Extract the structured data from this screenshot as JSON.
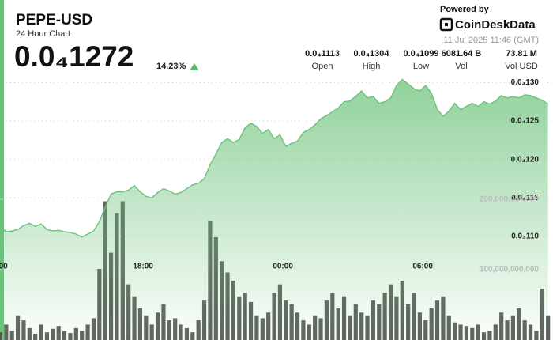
{
  "header": {
    "title": "PEPE-USD",
    "subtitle": "24 Hour Chart",
    "price": "0.0₄1272",
    "change": "14.23%",
    "powered_by": "Powered by",
    "brand": "CoinDeskData",
    "timestamp": "11 Jul 2025 11:46 (GMT)",
    "stats": [
      {
        "value": "0.0₄1113",
        "label": "Open"
      },
      {
        "value": "0.0₄1304",
        "label": "High"
      },
      {
        "value": "0.0₄1099",
        "label": "Low"
      },
      {
        "value": "6081.64 B",
        "label": "Vol"
      },
      {
        "value": "73.81 M",
        "label": "Vol USD"
      }
    ]
  },
  "chart_data": {
    "type": "line",
    "grid": true,
    "x": [
      11.875,
      12.125,
      12.375,
      12.625,
      12.875,
      13.125,
      13.375,
      13.625,
      13.875,
      14.125,
      14.375,
      14.625,
      14.875,
      15.125,
      15.375,
      15.625,
      15.875,
      16.125,
      16.375,
      16.625,
      16.875,
      17.125,
      17.375,
      17.625,
      17.875,
      18.125,
      18.375,
      18.625,
      18.875,
      19.125,
      19.375,
      19.625,
      19.875,
      20.125,
      20.375,
      20.625,
      20.875,
      21.125,
      21.375,
      21.625,
      21.875,
      22.125,
      22.375,
      22.625,
      22.875,
      23.125,
      23.375,
      23.625,
      23.875,
      24.125,
      24.375,
      24.625,
      24.875,
      25.125,
      25.375,
      25.625,
      25.875,
      26.125,
      26.375,
      26.625,
      26.875,
      27.125,
      27.375,
      27.625,
      27.875,
      28.125,
      28.375,
      28.625,
      28.875,
      29.125,
      29.375,
      29.625,
      29.875,
      30.125,
      30.375,
      30.625,
      30.875,
      31.125,
      31.375,
      31.625,
      31.875,
      32.125,
      32.375,
      32.625,
      32.875,
      33.125,
      33.375,
      33.625,
      33.875,
      34.125,
      34.375,
      34.625,
      34.875,
      35.125,
      35.375
    ],
    "xlim": [
      11.86,
      35.59
    ],
    "xticks": [
      {
        "value": 12,
        "label": "00"
      },
      {
        "value": 18,
        "label": "18:00"
      },
      {
        "value": 24,
        "label": "00:00"
      },
      {
        "value": 30,
        "label": "06:00"
      }
    ],
    "ylim": [
      9.653e-06,
      1.325e-05
    ],
    "yticks": [
      {
        "value": 1.1e-05,
        "label": "0.0₄110"
      },
      {
        "value": 1.15e-05,
        "label": "0.0₄115"
      },
      {
        "value": 1.2e-05,
        "label": "0.0₄120"
      },
      {
        "value": 1.25e-05,
        "label": "0.0₄125"
      },
      {
        "value": 1.3e-05,
        "label": "0.0₄130"
      }
    ],
    "y2lim": [
      0,
      393000000000
    ],
    "y2ticks": [
      {
        "value": 100000000000,
        "label": "100,000,000,000"
      },
      {
        "value": 200000000000,
        "label": "200,000,000,000"
      }
    ],
    "series": [
      {
        "type": "line",
        "color": "#6cc27a",
        "values": [
          1.113e-05,
          1.106e-05,
          1.107e-05,
          1.109e-05,
          1.114e-05,
          1.117e-05,
          1.113e-05,
          1.116e-05,
          1.109e-05,
          1.107e-05,
          1.108e-05,
          1.106e-05,
          1.105e-05,
          1.103e-05,
          1.099e-05,
          1.103e-05,
          1.107e-05,
          1.119e-05,
          1.138e-05,
          1.155e-05,
          1.158e-05,
          1.158e-05,
          1.16e-05,
          1.166e-05,
          1.158e-05,
          1.152e-05,
          1.15e-05,
          1.157e-05,
          1.162e-05,
          1.159e-05,
          1.155e-05,
          1.157e-05,
          1.162e-05,
          1.167e-05,
          1.169e-05,
          1.175e-05,
          1.193e-05,
          1.207e-05,
          1.222e-05,
          1.227e-05,
          1.222e-05,
          1.226e-05,
          1.241e-05,
          1.247e-05,
          1.243e-05,
          1.234e-05,
          1.239e-05,
          1.227e-05,
          1.232e-05,
          1.217e-05,
          1.221e-05,
          1.224e-05,
          1.235e-05,
          1.239e-05,
          1.245e-05,
          1.253e-05,
          1.257e-05,
          1.262e-05,
          1.267e-05,
          1.275e-05,
          1.276e-05,
          1.282e-05,
          1.289e-05,
          1.28e-05,
          1.282e-05,
          1.273e-05,
          1.275e-05,
          1.28e-05,
          1.296e-05,
          1.304e-05,
          1.298e-05,
          1.292e-05,
          1.289e-05,
          1.296e-05,
          1.286e-05,
          1.265e-05,
          1.256e-05,
          1.263e-05,
          1.273e-05,
          1.265e-05,
          1.269e-05,
          1.273e-05,
          1.269e-05,
          1.275e-05,
          1.272e-05,
          1.276e-05,
          1.283e-05,
          1.28e-05,
          1.282e-05,
          1.28e-05,
          1.284e-05,
          1.283e-05,
          1.28e-05,
          1.277e-05,
          1.272e-05
        ]
      },
      {
        "type": "bar",
        "axis": "y2",
        "color": "#434843",
        "values": [
          11000000000,
          22000000000,
          13000000000,
          34000000000,
          28000000000,
          17000000000,
          9000000000,
          22000000000,
          11000000000,
          16000000000,
          20000000000,
          13000000000,
          10000000000,
          17000000000,
          13000000000,
          22000000000,
          31000000000,
          101000000000,
          197000000000,
          124000000000,
          180000000000,
          197000000000,
          79000000000,
          62000000000,
          45000000000,
          34000000000,
          22000000000,
          39000000000,
          51000000000,
          28000000000,
          31000000000,
          22000000000,
          17000000000,
          11000000000,
          28000000000,
          56000000000,
          169000000000,
          146000000000,
          112000000000,
          96000000000,
          84000000000,
          62000000000,
          67000000000,
          54000000000,
          34000000000,
          31000000000,
          39000000000,
          67000000000,
          79000000000,
          56000000000,
          51000000000,
          39000000000,
          28000000000,
          22000000000,
          34000000000,
          31000000000,
          56000000000,
          67000000000,
          45000000000,
          62000000000,
          34000000000,
          51000000000,
          39000000000,
          34000000000,
          56000000000,
          51000000000,
          67000000000,
          79000000000,
          62000000000,
          84000000000,
          51000000000,
          67000000000,
          39000000000,
          28000000000,
          45000000000,
          56000000000,
          62000000000,
          34000000000,
          25000000000,
          22000000000,
          20000000000,
          17000000000,
          22000000000,
          11000000000,
          13000000000,
          22000000000,
          39000000000,
          28000000000,
          34000000000,
          45000000000,
          28000000000,
          22000000000,
          13000000000,
          73000000000,
          34000000000
        ]
      }
    ]
  }
}
